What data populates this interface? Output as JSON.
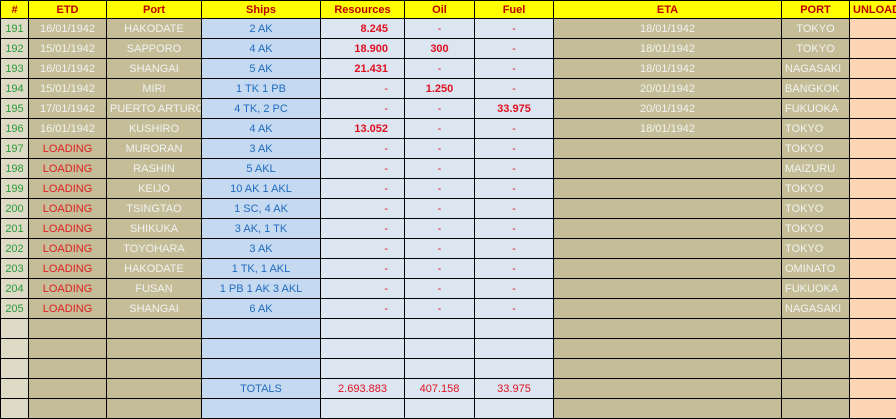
{
  "headers": [
    "#",
    "ETD",
    "Port",
    "Ships",
    "Resources",
    "Oil",
    "Fuel",
    "ETA",
    "PORT",
    "UNLOAD"
  ],
  "rows": [
    {
      "num": "191",
      "etd": "16/01/1942",
      "port": "HAKODATE",
      "ships": "2 AK",
      "resources": "8.245",
      "oil": "-",
      "fuel": "-",
      "eta": "18/01/1942",
      "dest": "TOKYO"
    },
    {
      "num": "192",
      "etd": "15/01/1942",
      "port": "SAPPORO",
      "ships": "4 AK",
      "resources": "18.900",
      "oil": "300",
      "fuel": "-",
      "eta": "18/01/1942",
      "dest": "TOKYO"
    },
    {
      "num": "193",
      "etd": "16/01/1942",
      "port": "SHANGAI",
      "ships": "5 AK",
      "resources": "21.431",
      "oil": "-",
      "fuel": "-",
      "eta": "18/01/1942",
      "dest": "NAGASAKI"
    },
    {
      "num": "194",
      "etd": "15/01/1942",
      "port": "MIRI",
      "ships": "1 TK 1 PB",
      "resources": "-",
      "oil": "1.250",
      "fuel": "-",
      "eta": "20/01/1942",
      "dest": "BANGKOK"
    },
    {
      "num": "195",
      "etd": "17/01/1942",
      "port": "PUERTO ARTURO",
      "ships": "4 TK, 2 PC",
      "resources": "-",
      "oil": "-",
      "fuel": "33.975",
      "eta": "20/01/1942",
      "dest": "FUKUOKA"
    },
    {
      "num": "196",
      "etd": "16/01/1942",
      "port": "KUSHIRO",
      "ships": "4 AK",
      "resources": "13.052",
      "oil": "-",
      "fuel": "-",
      "eta": "18/01/1942",
      "dest": "TOKYO"
    },
    {
      "num": "197",
      "etd": "LOADING",
      "port": "MURORAN",
      "ships": "3 AK",
      "resources": "-",
      "oil": "-",
      "fuel": "-",
      "eta": "",
      "dest": "TOKYO"
    },
    {
      "num": "198",
      "etd": "LOADING",
      "port": "RASHIN",
      "ships": "5 AKL",
      "resources": "-",
      "oil": "-",
      "fuel": "-",
      "eta": "",
      "dest": "MAIZURU"
    },
    {
      "num": "199",
      "etd": "LOADING",
      "port": "KEIJO",
      "ships": "10 AK 1 AKL",
      "resources": "-",
      "oil": "-",
      "fuel": "-",
      "eta": "",
      "dest": "TOKYO"
    },
    {
      "num": "200",
      "etd": "LOADING",
      "port": "TSINGTAO",
      "ships": "1 SC, 4 AK",
      "resources": "-",
      "oil": "-",
      "fuel": "-",
      "eta": "",
      "dest": "TOKYO"
    },
    {
      "num": "201",
      "etd": "LOADING",
      "port": "SHIKUKA",
      "ships": "3 AK, 1 TK",
      "resources": "-",
      "oil": "-",
      "fuel": "-",
      "eta": "",
      "dest": "TOKYO"
    },
    {
      "num": "202",
      "etd": "LOADING",
      "port": "TOYOHARA",
      "ships": "3 AK",
      "resources": "-",
      "oil": "-",
      "fuel": "-",
      "eta": "",
      "dest": "TOKYO"
    },
    {
      "num": "203",
      "etd": "LOADING",
      "port": "HAKODATE",
      "ships": "1 TK, 1 AKL",
      "resources": "-",
      "oil": "-",
      "fuel": "-",
      "eta": "",
      "dest": "OMINATO"
    },
    {
      "num": "204",
      "etd": "LOADING",
      "port": "FUSAN",
      "ships": "1 PB 1 AK 3 AKL",
      "resources": "-",
      "oil": "-",
      "fuel": "-",
      "eta": "",
      "dest": "FUKUOKA"
    },
    {
      "num": "205",
      "etd": "LOADING",
      "port": "SHANGAI",
      "ships": "6 AK",
      "resources": "-",
      "oil": "-",
      "fuel": "-",
      "eta": "",
      "dest": "NAGASAKI"
    }
  ],
  "empty_rows_before_totals": 3,
  "totals": {
    "label": "TOTALS",
    "resources": "2.693.883",
    "oil": "407.158",
    "fuel": "33.975"
  },
  "colors": {
    "header_bg": "#ffff00",
    "header_text": "#c00000",
    "khaki": "#c4bd97",
    "ships_bg": "#c5d9f1",
    "values_bg": "#dce6f1",
    "unload_bg": "#fcd5b4",
    "value_text": "#e01020",
    "loading_text": "#e02020",
    "id_text": "#2e9a3c"
  }
}
